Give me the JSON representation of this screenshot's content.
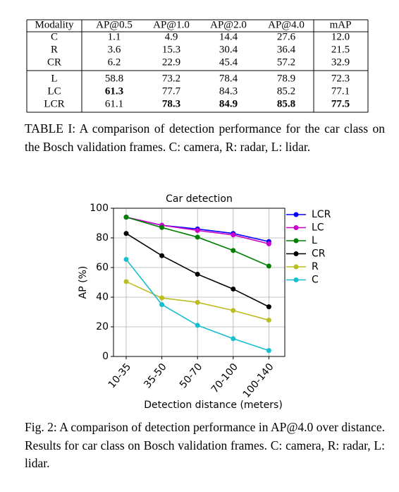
{
  "table": {
    "header": [
      "Modality",
      "AP@0.5",
      "AP@1.0",
      "AP@2.0",
      "AP@4.0",
      "mAP"
    ],
    "rows": [
      [
        "C",
        "1.1",
        "4.9",
        "14.4",
        "27.6",
        "12.0"
      ],
      [
        "R",
        "3.6",
        "15.3",
        "30.4",
        "36.4",
        "21.5"
      ],
      [
        "CR",
        "6.2",
        "22.9",
        "45.4",
        "57.2",
        "32.9"
      ],
      [
        "L",
        "58.8",
        "73.2",
        "78.4",
        "78.9",
        "72.3"
      ],
      [
        "LC",
        {
          "text": "61.3",
          "bold": true
        },
        "77.7",
        "84.3",
        "85.2",
        "77.1"
      ],
      [
        "LCR",
        "61.1",
        {
          "text": "78.3",
          "bold": true
        },
        {
          "text": "84.9",
          "bold": true
        },
        {
          "text": "85.8",
          "bold": true
        },
        {
          "text": "77.5",
          "bold": true
        }
      ]
    ],
    "caption": "TABLE I: A comparison of detection performance for the car class on the Bosch validation frames. C: camera, R: radar, L: lidar."
  },
  "chart_data": {
    "type": "line",
    "title": "Car detection",
    "x_label": "Detection distance (meters)",
    "y_label": "AP (%)",
    "categories": [
      "10-35",
      "35-50",
      "50-70",
      "70-100",
      "100-140"
    ],
    "ylim": [
      0,
      100
    ],
    "yticks": [
      0,
      20,
      40,
      60,
      80,
      100
    ],
    "grid": true,
    "legend": "outside right",
    "series": [
      {
        "name": "LCR",
        "color": "#0000ff",
        "values": [
          94,
          88.5,
          86,
          83,
          77.5
        ]
      },
      {
        "name": "LC",
        "color": "#cc00cc",
        "values": [
          94,
          88.5,
          85,
          82,
          76
        ]
      },
      {
        "name": "L",
        "color": "#008000",
        "values": [
          94,
          87,
          80.5,
          71.5,
          61
        ]
      },
      {
        "name": "CR",
        "color": "#000000",
        "values": [
          83,
          68,
          55.5,
          45.5,
          33.5
        ]
      },
      {
        "name": "R",
        "color": "#bcbd22",
        "values": [
          50.5,
          39.5,
          36.5,
          31,
          24.5
        ]
      },
      {
        "name": "C",
        "color": "#17becf",
        "values": [
          65.5,
          35,
          21,
          12,
          4
        ]
      }
    ]
  },
  "figure_caption": "Fig. 2: A comparison of detection performance in AP@4.0 over distance. Results for car class on Bosch validation frames. C: camera, R: radar, L: lidar."
}
